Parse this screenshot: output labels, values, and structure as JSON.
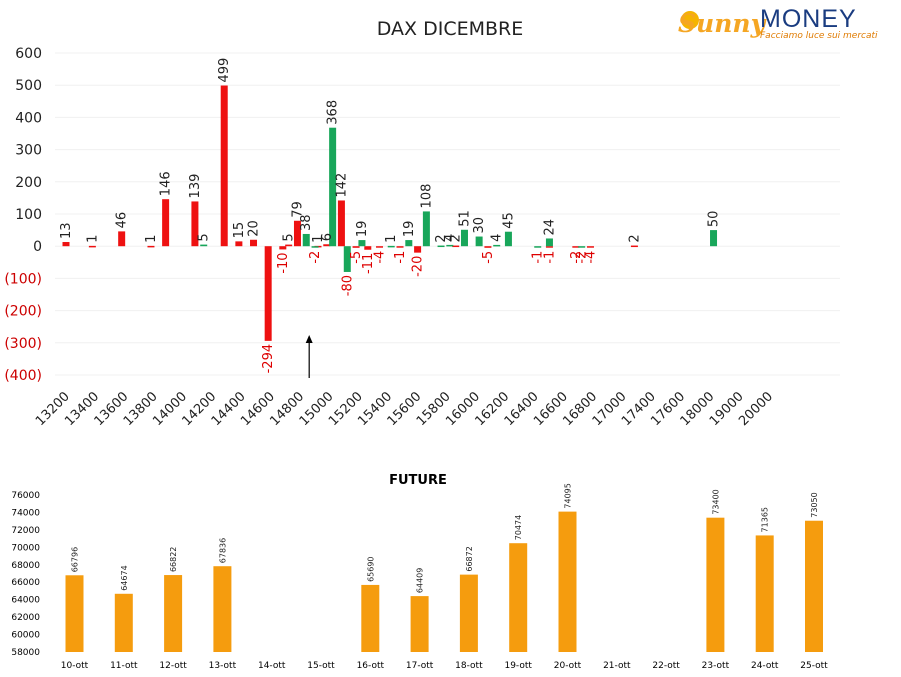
{
  "logo": {
    "brand_a": "Sunny",
    "brand_b": "MONEY",
    "tagline": "Facciamo luce sui mercati"
  },
  "colors": {
    "positive": "#18a65a",
    "negative": "#ee1111",
    "future_bar": "#f59c0e"
  },
  "chart_data": [
    {
      "type": "bar",
      "title": "DAX DICEMBRE",
      "ylim": [
        -400,
        600
      ],
      "yticks": [
        {
          "v": 600,
          "label": "600"
        },
        {
          "v": 500,
          "label": "500"
        },
        {
          "v": 400,
          "label": "400"
        },
        {
          "v": 300,
          "label": "300"
        },
        {
          "v": 200,
          "label": "200"
        },
        {
          "v": 100,
          "label": "100"
        },
        {
          "v": 0,
          "label": "0"
        },
        {
          "v": -100,
          "label": "(100)"
        },
        {
          "v": -200,
          "label": "(200)"
        },
        {
          "v": -300,
          "label": "(300)"
        },
        {
          "v": -400,
          "label": "(400)"
        }
      ],
      "tick_labels": [
        "13200",
        "13400",
        "13600",
        "13800",
        "14000",
        "14200",
        "14400",
        "14600",
        "14800",
        "15000",
        "15200",
        "15400",
        "15600",
        "15800",
        "16000",
        "16200",
        "16400",
        "16600",
        "16800",
        "17000",
        "17400",
        "17600",
        "18000",
        "19000",
        "20000"
      ],
      "series": [
        {
          "color": "negative",
          "points": [
            {
              "x": 0.0,
              "value": 13,
              "label": "13"
            },
            {
              "x": 0.9,
              "value": 1,
              "label": "1"
            },
            {
              "x": 1.9,
              "value": 46,
              "label": "46"
            },
            {
              "x": 2.9,
              "value": 1,
              "label": "1"
            },
            {
              "x": 3.4,
              "value": 146,
              "label": "146"
            },
            {
              "x": 4.4,
              "value": 139,
              "label": "139"
            },
            {
              "x": 5.4,
              "value": 499,
              "label": "499"
            },
            {
              "x": 5.9,
              "value": 15,
              "label": "15"
            },
            {
              "x": 6.4,
              "value": 20,
              "label": "20"
            },
            {
              "x": 6.9,
              "value": -294,
              "label": "-294"
            },
            {
              "x": 7.4,
              "value": -10,
              "label": "-10"
            },
            {
              "x": 7.6,
              "value": 5,
              "label": "5"
            },
            {
              "x": 7.9,
              "value": 79,
              "label": "79"
            },
            {
              "x": 8.6,
              "value": 1,
              "label": "1"
            },
            {
              "x": 8.9,
              "value": 6,
              "label": "6"
            },
            {
              "x": 9.4,
              "value": 142,
              "label": "142"
            },
            {
              "x": 9.9,
              "value": -5,
              "label": "-5"
            },
            {
              "x": 10.3,
              "value": -11,
              "label": "-11"
            },
            {
              "x": 10.7,
              "value": -4,
              "label": "-4"
            },
            {
              "x": 11.4,
              "value": -1,
              "label": "-1"
            },
            {
              "x": 12.0,
              "value": -20,
              "label": "-20"
            },
            {
              "x": 13.3,
              "value": 2,
              "label": "2"
            },
            {
              "x": 14.4,
              "value": -5,
              "label": "-5"
            },
            {
              "x": 16.5,
              "value": -1,
              "label": "-1"
            },
            {
              "x": 17.4,
              "value": -2,
              "label": "-2"
            },
            {
              "x": 17.9,
              "value": -4,
              "label": "-4"
            },
            {
              "x": 19.4,
              "value": 2,
              "label": "2"
            }
          ]
        },
        {
          "color": "positive",
          "points": [
            {
              "x": 4.7,
              "value": 5,
              "label": "5"
            },
            {
              "x": 8.2,
              "value": 38,
              "label": "38"
            },
            {
              "x": 8.5,
              "value": -2,
              "label": "-2"
            },
            {
              "x": 9.1,
              "value": 368,
              "label": "368"
            },
            {
              "x": 9.6,
              "value": -80,
              "label": "-80"
            },
            {
              "x": 10.1,
              "value": 19,
              "label": "19"
            },
            {
              "x": 11.1,
              "value": 1,
              "label": "1"
            },
            {
              "x": 11.7,
              "value": 19,
              "label": "19"
            },
            {
              "x": 12.3,
              "value": 108,
              "label": "108"
            },
            {
              "x": 12.8,
              "value": 2,
              "label": "2"
            },
            {
              "x": 13.1,
              "value": 4,
              "label": "4"
            },
            {
              "x": 13.6,
              "value": 51,
              "label": "51"
            },
            {
              "x": 14.1,
              "value": 30,
              "label": "30"
            },
            {
              "x": 14.7,
              "value": 4,
              "label": "4"
            },
            {
              "x": 15.1,
              "value": 45,
              "label": "45"
            },
            {
              "x": 16.1,
              "value": -1,
              "label": "-1"
            },
            {
              "x": 16.5,
              "value": 24,
              "label": "24"
            },
            {
              "x": 17.6,
              "value": -2,
              "label": "-2"
            },
            {
              "x": 22.1,
              "value": 50,
              "label": "50"
            }
          ]
        }
      ],
      "marker_arrow_x": 8.3
    },
    {
      "type": "bar",
      "title": "FUTURE",
      "ylim": [
        58000,
        76000
      ],
      "yticks": [
        "76000",
        "74000",
        "72000",
        "70000",
        "68000",
        "66000",
        "64000",
        "62000",
        "60000",
        "58000"
      ],
      "categories": [
        "10-ott",
        "11-ott",
        "12-ott",
        "13-ott",
        "14-ott",
        "15-ott",
        "16-ott",
        "17-ott",
        "18-ott",
        "19-ott",
        "20-ott",
        "21-ott",
        "22-ott",
        "23-ott",
        "24-ott",
        "25-ott"
      ],
      "values": [
        66796,
        64674,
        66822,
        67836,
        null,
        null,
        65690,
        64409,
        66872,
        70474,
        74095,
        null,
        null,
        73400,
        71365,
        73050
      ],
      "labels": [
        "66796",
        "64674",
        "66822",
        "67836",
        "",
        "",
        "65690",
        "64409",
        "66872",
        "70474",
        "74095",
        "",
        "",
        "73400",
        "71365",
        "73050"
      ]
    }
  ]
}
